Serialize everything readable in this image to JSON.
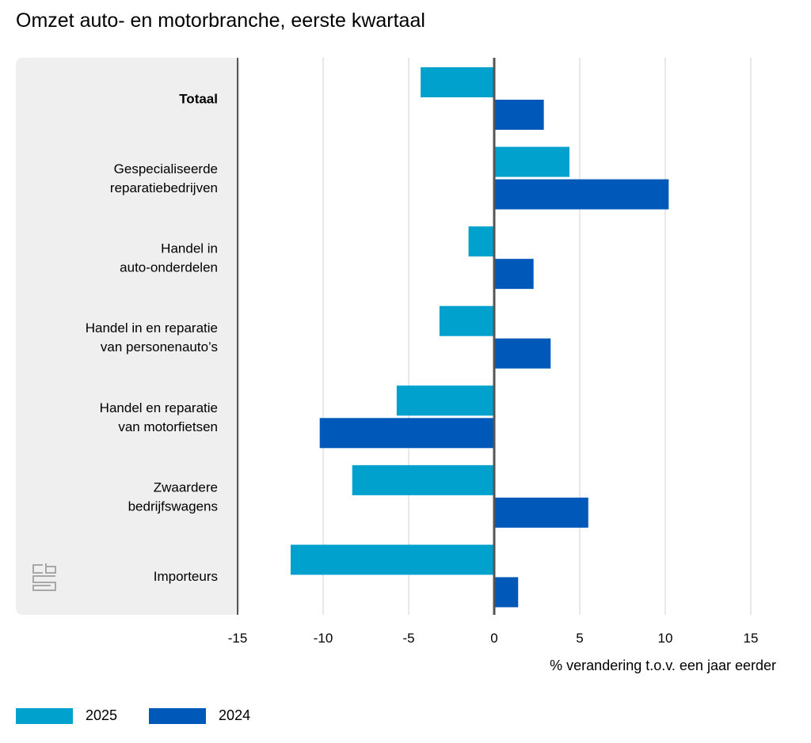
{
  "chart_data": {
    "type": "bar",
    "orientation": "horizontal",
    "title": "Omzet auto- en motorbranche, eerste kwartaal",
    "xlabel": "% verandering t.o.v. een jaar eerder",
    "ylabel": "",
    "xlim": [
      -15,
      15
    ],
    "xticks": [
      -15,
      -10,
      -5,
      0,
      5,
      10,
      15
    ],
    "grid": true,
    "legend_position": "bottom-left",
    "categories": [
      [
        "Totaal"
      ],
      [
        "Gespecialiseerde",
        "reparatiebedrijven"
      ],
      [
        "Handel in",
        "auto-onderdelen"
      ],
      [
        "Handel in en reparatie",
        "van personenauto’s"
      ],
      [
        "Handel en reparatie",
        "van motorfietsen"
      ],
      [
        "Zwaardere",
        "bedrijfswagens"
      ],
      [
        "Importeurs"
      ]
    ],
    "bold_categories": [
      0
    ],
    "series": [
      {
        "name": "2025",
        "color": "#00a1cd",
        "values": [
          -4.3,
          4.4,
          -1.5,
          -3.2,
          -5.7,
          -8.3,
          -11.9
        ]
      },
      {
        "name": "2024",
        "color": "#0058b8",
        "values": [
          2.9,
          10.2,
          2.3,
          3.3,
          -10.2,
          5.5,
          1.4
        ]
      }
    ]
  },
  "colors": {
    "panel": "#efefef",
    "gridline": "#d0d0d0",
    "axis": "#555555"
  },
  "logo": "cbs"
}
